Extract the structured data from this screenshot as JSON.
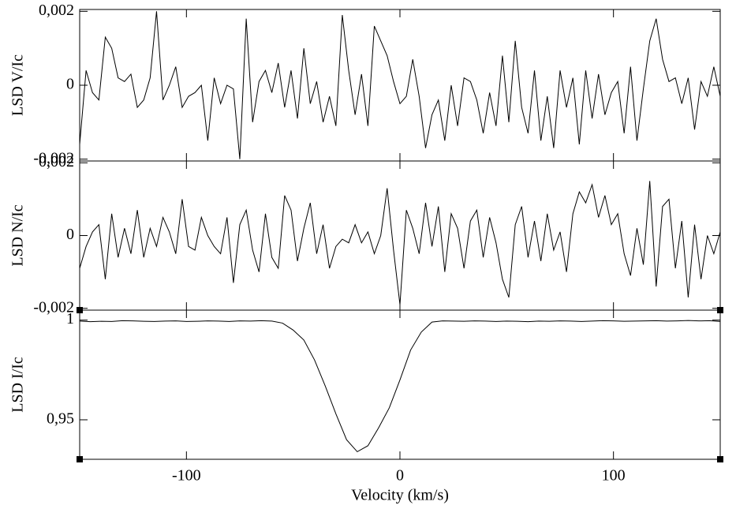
{
  "chart_data": [
    {
      "type": "line",
      "ylabel": "LSD V/Ic",
      "color": "#000000",
      "xlim": [
        -150,
        150
      ],
      "ylim": [
        -0.00205,
        0.00205
      ],
      "yticks": [
        {
          "value": -0.002,
          "label": "-0,002"
        },
        0,
        {
          "value": 0.002,
          "label": "0,002"
        }
      ],
      "x": [
        -150,
        -147,
        -144,
        -141,
        -138,
        -135,
        -132,
        -129,
        -126,
        -123,
        -120,
        -117,
        -114,
        -111,
        -108,
        -105,
        -102,
        -99,
        -96,
        -93,
        -90,
        -87,
        -84,
        -81,
        -78,
        -75,
        -72,
        -69,
        -66,
        -63,
        -60,
        -57,
        -54,
        -51,
        -48,
        -45,
        -42,
        -39,
        -36,
        -33,
        -30,
        -27,
        -24,
        -21,
        -18,
        -15,
        -12,
        -9,
        -6,
        -3,
        0,
        3,
        6,
        9,
        12,
        15,
        18,
        21,
        24,
        27,
        30,
        33,
        36,
        39,
        42,
        45,
        48,
        51,
        54,
        57,
        60,
        63,
        66,
        69,
        72,
        75,
        78,
        81,
        84,
        87,
        90,
        93,
        96,
        99,
        102,
        105,
        108,
        111,
        114,
        117,
        120,
        123,
        126,
        129,
        132,
        135,
        138,
        141,
        144,
        147,
        150
      ],
      "values": [
        -0.0016,
        0.0004,
        -0.0002,
        -0.0004,
        0.0013,
        0.001,
        0.0002,
        0.0001,
        0.0003,
        -0.0006,
        -0.0004,
        0.0002,
        0.002,
        -0.0004,
        0.0,
        0.0005,
        -0.0006,
        -0.0003,
        -0.0002,
        0.0,
        -0.0015,
        0.0002,
        -0.0005,
        0.0,
        -0.0001,
        -0.002,
        0.0018,
        -0.001,
        0.0001,
        0.0004,
        -0.0002,
        0.0006,
        -0.0006,
        0.0004,
        -0.0009,
        0.001,
        -0.0005,
        0.0001,
        -0.001,
        -0.0003,
        -0.0011,
        0.0019,
        0.0004,
        -0.0008,
        0.0003,
        -0.0011,
        0.0016,
        0.0012,
        0.0008,
        0.0001,
        -0.0005,
        -0.0003,
        0.0007,
        -0.0003,
        -0.0017,
        -0.0008,
        -0.0004,
        -0.0015,
        0.0,
        -0.0011,
        0.0002,
        0.0001,
        -0.0004,
        -0.0013,
        -0.0002,
        -0.0011,
        0.0008,
        -0.001,
        0.0012,
        -0.0006,
        -0.0013,
        0.0004,
        -0.0015,
        -0.0003,
        -0.0017,
        0.0004,
        -0.0006,
        0.0002,
        -0.0016,
        0.0004,
        -0.0009,
        0.0003,
        -0.0008,
        -0.0002,
        0.0001,
        -0.0013,
        0.0005,
        -0.0015,
        -0.0001,
        0.0012,
        0.0018,
        0.0007,
        0.0001,
        0.0002,
        -0.0005,
        0.0002,
        -0.0012,
        0.0001,
        -0.0003,
        0.0005,
        -0.0003
      ]
    },
    {
      "type": "line",
      "ylabel": "LSD N/Ic",
      "color": "#000000",
      "xlim": [
        -150,
        150
      ],
      "ylim": [
        -0.00205,
        0.00205
      ],
      "yticks": [
        {
          "value": -0.002,
          "label": "-0,002"
        },
        0,
        {
          "value": 0.002,
          "label": "0,002"
        }
      ],
      "x": [
        -150,
        -147,
        -144,
        -141,
        -138,
        -135,
        -132,
        -129,
        -126,
        -123,
        -120,
        -117,
        -114,
        -111,
        -108,
        -105,
        -102,
        -99,
        -96,
        -93,
        -90,
        -87,
        -84,
        -81,
        -78,
        -75,
        -72,
        -69,
        -66,
        -63,
        -60,
        -57,
        -54,
        -51,
        -48,
        -45,
        -42,
        -39,
        -36,
        -33,
        -30,
        -27,
        -24,
        -21,
        -18,
        -15,
        -12,
        -9,
        -6,
        -3,
        0,
        3,
        6,
        9,
        12,
        15,
        18,
        21,
        24,
        27,
        30,
        33,
        36,
        39,
        42,
        45,
        48,
        51,
        54,
        57,
        60,
        63,
        66,
        69,
        72,
        75,
        78,
        81,
        84,
        87,
        90,
        93,
        96,
        99,
        102,
        105,
        108,
        111,
        114,
        117,
        120,
        123,
        126,
        129,
        132,
        135,
        138,
        141,
        144,
        147,
        150
      ],
      "values": [
        -0.0009,
        -0.0003,
        0.0001,
        0.0003,
        -0.0012,
        0.0006,
        -0.0006,
        0.0002,
        -0.0005,
        0.0007,
        -0.0006,
        0.0002,
        -0.0003,
        0.0005,
        0.0001,
        -0.0005,
        0.001,
        -0.0003,
        -0.0004,
        0.0005,
        0.0,
        -0.0003,
        -0.0005,
        0.0005,
        -0.0013,
        0.0003,
        0.0007,
        -0.0004,
        -0.001,
        0.0006,
        -0.0006,
        -0.0009,
        0.0011,
        0.0007,
        -0.0007,
        0.0002,
        0.0009,
        -0.0005,
        0.0003,
        -0.0009,
        -0.0003,
        -0.0001,
        -0.0002,
        0.0003,
        -0.0002,
        0.0001,
        -0.0005,
        0.0,
        0.0013,
        -0.0004,
        -0.0019,
        0.0007,
        0.0002,
        -0.0005,
        0.0009,
        -0.0003,
        0.0008,
        -0.001,
        0.0006,
        0.0002,
        -0.0009,
        0.0004,
        0.0007,
        -0.0006,
        0.0005,
        -0.0002,
        -0.0012,
        -0.0017,
        0.0003,
        0.0008,
        -0.0006,
        0.0004,
        -0.0007,
        0.0006,
        -0.0004,
        0.0001,
        -0.001,
        0.0006,
        0.0012,
        0.0009,
        0.0014,
        0.0005,
        0.0011,
        0.0003,
        0.0006,
        -0.0005,
        -0.0011,
        0.0002,
        -0.0008,
        0.0015,
        -0.0014,
        0.0008,
        0.001,
        -0.0009,
        0.0004,
        -0.0017,
        0.0003,
        -0.0012,
        0.0,
        -0.0005,
        0.0001
      ]
    },
    {
      "type": "line",
      "ylabel": "LSD I/Ic",
      "xlabel": "Velocity (km/s)",
      "color": "#000000",
      "xlim": [
        -150,
        150
      ],
      "xticks": [
        -100,
        0,
        100
      ],
      "ylim": [
        0.9302,
        1.005
      ],
      "yticks": [
        {
          "value": 0.95,
          "label": "0,95"
        },
        1
      ],
      "x": [
        -150,
        -145,
        -140,
        -135,
        -130,
        -125,
        -120,
        -115,
        -110,
        -105,
        -100,
        -95,
        -90,
        -85,
        -80,
        -75,
        -70,
        -65,
        -60,
        -55,
        -50,
        -45,
        -40,
        -35,
        -30,
        -25,
        -20,
        -15,
        -10,
        -5,
        0,
        5,
        10,
        15,
        20,
        25,
        30,
        35,
        40,
        45,
        50,
        55,
        60,
        65,
        70,
        75,
        80,
        85,
        90,
        95,
        100,
        105,
        110,
        115,
        120,
        125,
        130,
        135,
        140,
        145,
        150
      ],
      "values": [
        0.9995,
        0.9992,
        0.9994,
        0.9993,
        0.9997,
        0.9996,
        0.9994,
        0.9993,
        0.9995,
        0.9996,
        0.9993,
        0.9994,
        0.9996,
        0.9995,
        0.9993,
        0.9996,
        0.9995,
        0.9997,
        0.9995,
        0.9985,
        0.995,
        0.99,
        0.98,
        0.967,
        0.953,
        0.94,
        0.934,
        0.937,
        0.946,
        0.956,
        0.97,
        0.985,
        0.994,
        0.999,
        0.9996,
        0.9995,
        0.9994,
        0.9996,
        0.9995,
        0.9993,
        0.9995,
        0.9994,
        0.9992,
        0.9995,
        0.9994,
        0.9996,
        0.9995,
        0.9993,
        0.9995,
        0.9997,
        0.9996,
        0.9994,
        0.9995,
        0.9996,
        0.9997,
        0.9995,
        0.9996,
        0.9998,
        0.9996,
        0.9997,
        0.9993
      ]
    }
  ]
}
